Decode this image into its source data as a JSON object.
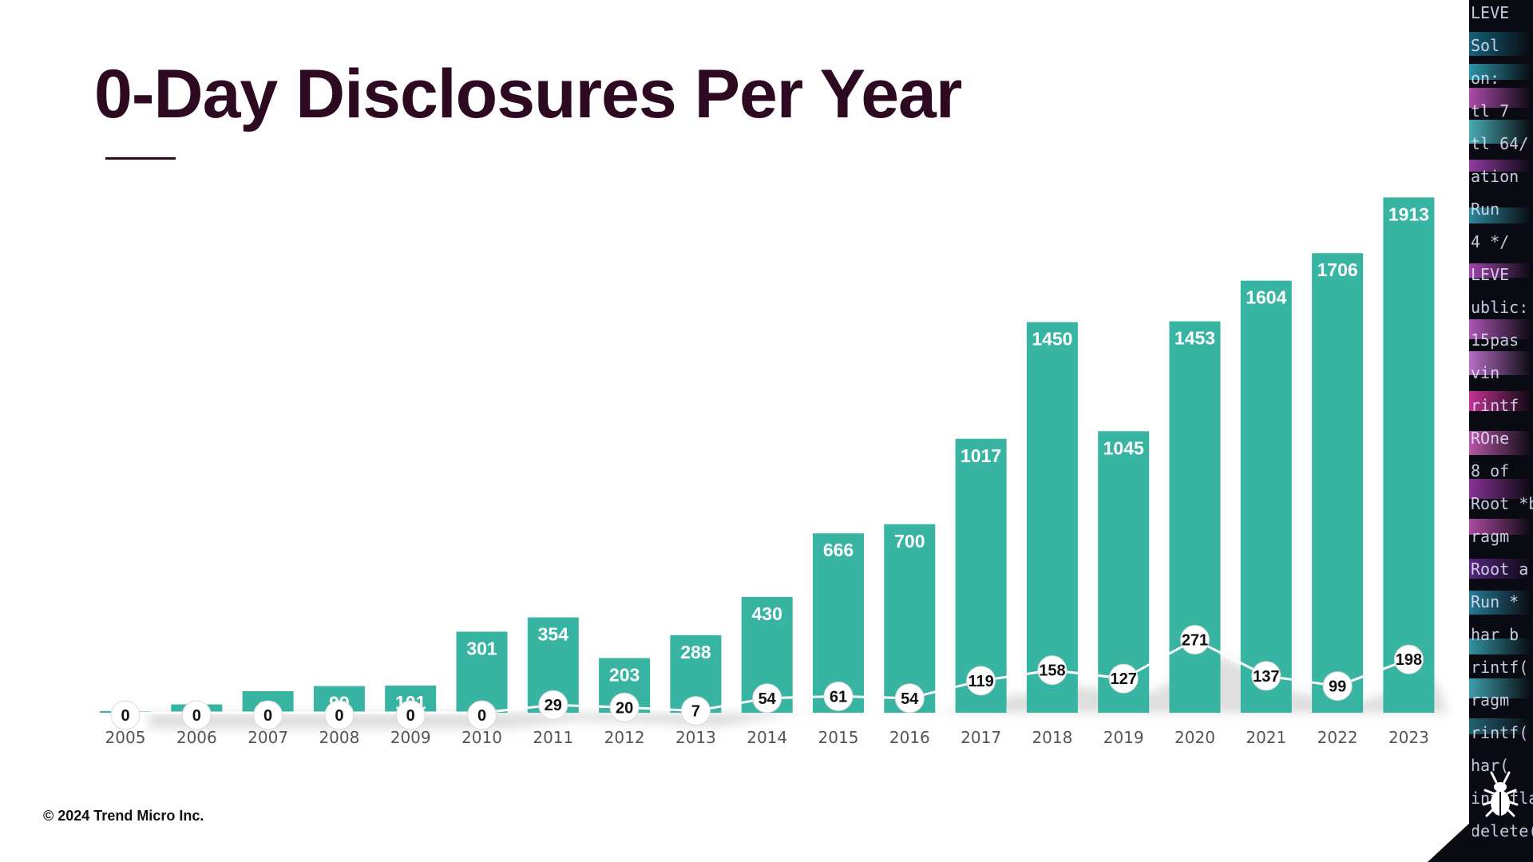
{
  "title": "0-Day Disclosures Per Year",
  "copyright": "© 2024 Trend Micro Inc.",
  "colors": {
    "bar": "#37b5a2",
    "title": "#2e0a22",
    "line": "#ffffff",
    "shadow": "#c8c8c8"
  },
  "decor": {
    "side_panel": "code-glitch-background",
    "logo_icon": "beetle-icon",
    "code_snippets": [
      "LEVE",
      "Sol",
      "on:",
      "tl 7",
      "tl 64/",
      "ation",
      "Run",
      "4 */",
      "LEVE",
      "ublic:",
      "15pas",
      "vin",
      "rintf",
      "ROne",
      "8 of",
      "Root *b",
      "ragm",
      "Root a",
      "Run *",
      "har b",
      "rintf(",
      "ragm",
      "rintf(",
      "har(",
      "int fla",
      "delete("
    ]
  },
  "chart_data": {
    "type": "bar",
    "title": "0-Day Disclosures Per Year",
    "xlabel": "",
    "ylabel": "",
    "categories": [
      "2005",
      "2006",
      "2007",
      "2008",
      "2009",
      "2010",
      "2011",
      "2012",
      "2013",
      "2014",
      "2015",
      "2016",
      "2017",
      "2018",
      "2019",
      "2020",
      "2021",
      "2022",
      "2023"
    ],
    "ylim": [
      0,
      2000
    ],
    "grid": false,
    "legend": "none",
    "series": [
      {
        "type": "bar",
        "values": [
          2,
          31,
          80,
          99,
          101,
          301,
          354,
          203,
          288,
          430,
          666,
          700,
          1017,
          1450,
          1045,
          1453,
          1604,
          1706,
          1913
        ]
      },
      {
        "type": "line",
        "values": [
          0,
          0,
          0,
          0,
          0,
          0,
          29,
          20,
          7,
          54,
          61,
          54,
          119,
          158,
          127,
          271,
          137,
          99,
          198
        ]
      }
    ]
  }
}
